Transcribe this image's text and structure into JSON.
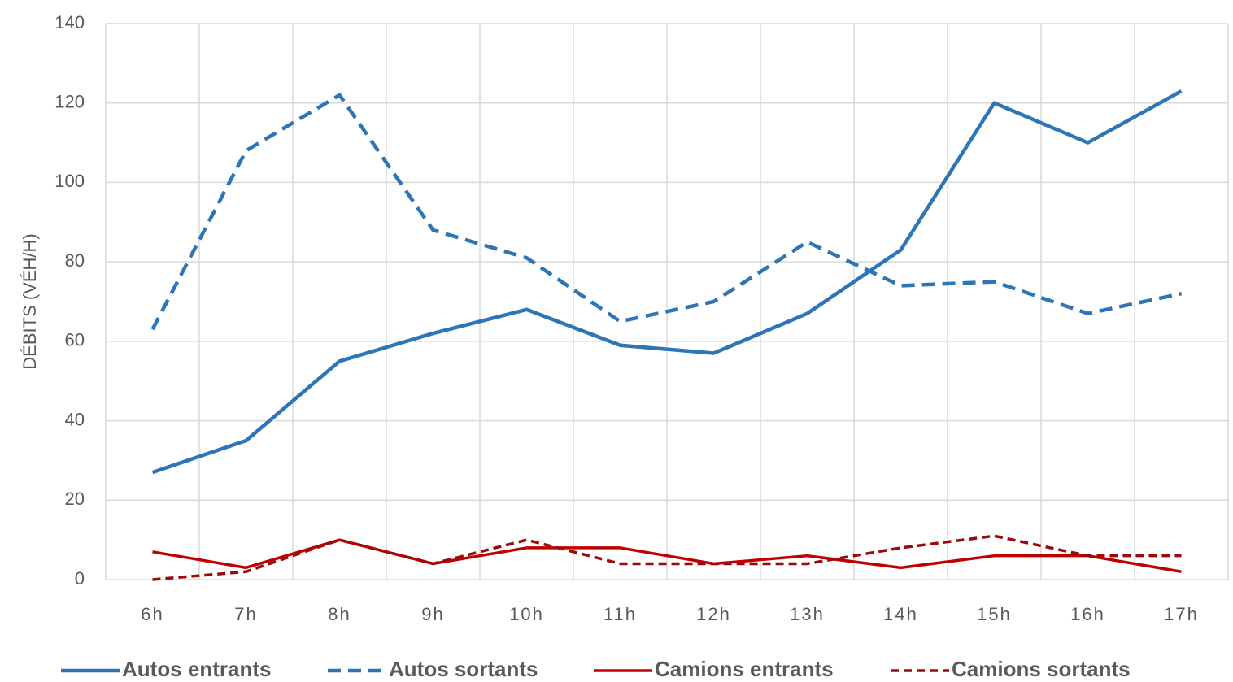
{
  "chart_data": {
    "type": "line",
    "y_label": "DÉBITS (VÉH/H)",
    "categories": [
      "6h",
      "7h",
      "8h",
      "9h",
      "10h",
      "11h",
      "12h",
      "13h",
      "14h",
      "15h",
      "16h",
      "17h"
    ],
    "series": [
      {
        "name": "Autos entrants",
        "color": "#2e75b6",
        "dashed": false,
        "values": [
          27,
          35,
          55,
          62,
          68,
          59,
          57,
          67,
          83,
          120,
          110,
          123
        ]
      },
      {
        "name": "Autos sortants",
        "color": "#2e75b6",
        "dashed": true,
        "values": [
          63,
          108,
          122,
          88,
          81,
          65,
          70,
          85,
          74,
          75,
          67,
          72
        ]
      },
      {
        "name": "Camions entrants",
        "color": "#c00000",
        "dashed": false,
        "values": [
          7,
          3,
          10,
          4,
          8,
          8,
          4,
          6,
          3,
          6,
          6,
          2
        ]
      },
      {
        "name": "Camions sortants",
        "color": "#9b0a0a",
        "dashed": true,
        "values": [
          0,
          2,
          10,
          4,
          10,
          4,
          4,
          4,
          8,
          11,
          6,
          6
        ]
      }
    ],
    "ylim": [
      0,
      140
    ],
    "yticks": [
      0,
      20,
      40,
      60,
      80,
      100,
      120,
      140
    ],
    "grid": true,
    "legend": "bottom"
  }
}
